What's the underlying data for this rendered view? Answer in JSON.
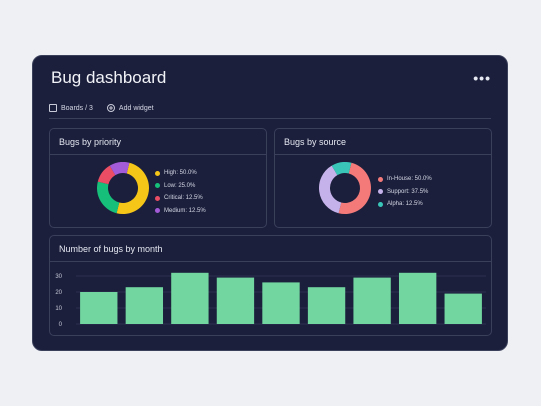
{
  "dashboard": {
    "title": "Bug dashboard",
    "more_label": "•••",
    "toolbar": {
      "boards_label": "Boards / 3",
      "add_widget_label": "Add widget"
    }
  },
  "panels": {
    "priority": {
      "title": "Bugs by priority",
      "legend": [
        {
          "label": "High: 50.0%",
          "color": "#f5c518"
        },
        {
          "label": "Low: 25.0%",
          "color": "#16c07a"
        },
        {
          "label": "Critical: 12.5%",
          "color": "#ea4d64"
        },
        {
          "label": "Medium: 12.5%",
          "color": "#a45bd8"
        }
      ]
    },
    "source": {
      "title": "Bugs by source",
      "legend": [
        {
          "label": "In-House: 50.0%",
          "color": "#f47a7a"
        },
        {
          "label": "Support: 37.5%",
          "color": "#c6b2ea"
        },
        {
          "label": "Alpha: 12.5%",
          "color": "#39c6b9"
        }
      ]
    },
    "monthly": {
      "title": "Number of bugs by month"
    }
  },
  "chart_data": [
    {
      "type": "pie",
      "title": "Bugs by priority",
      "categories": [
        "High",
        "Low",
        "Critical",
        "Medium"
      ],
      "values": [
        50.0,
        25.0,
        12.5,
        12.5
      ],
      "colors": [
        "#f5c518",
        "#16c07a",
        "#ea4d64",
        "#a45bd8"
      ],
      "donut": true,
      "legend_position": "right"
    },
    {
      "type": "pie",
      "title": "Bugs by source",
      "categories": [
        "In-House",
        "Support",
        "Alpha"
      ],
      "values": [
        50.0,
        37.5,
        12.5
      ],
      "colors": [
        "#f47a7a",
        "#c6b2ea",
        "#39c6b9"
      ],
      "donut": true,
      "legend_position": "right"
    },
    {
      "type": "bar",
      "title": "Number of bugs by month",
      "values": [
        20,
        23,
        32,
        29,
        26,
        23,
        29,
        32,
        19
      ],
      "yticks": [
        0,
        10,
        20,
        30
      ],
      "ylim": [
        0,
        35
      ],
      "grid": true,
      "bar_color": "#72d6a0"
    }
  ]
}
